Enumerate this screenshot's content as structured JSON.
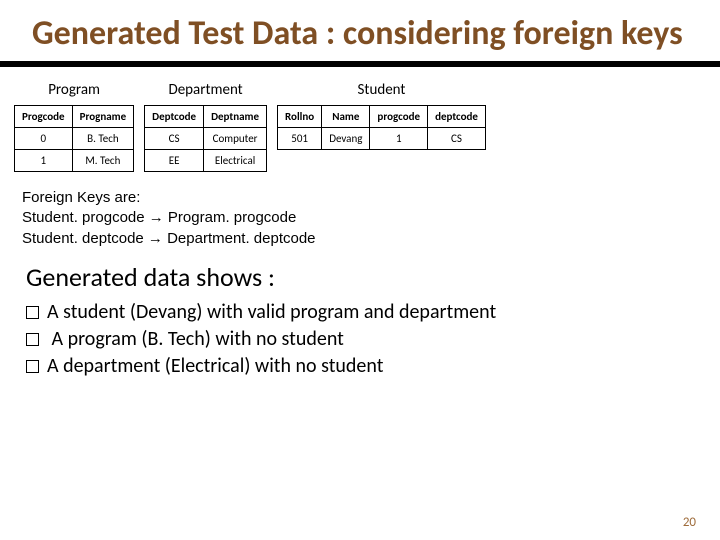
{
  "title": "Generated Test Data : considering foreign keys",
  "tables": {
    "program": {
      "caption": "Program",
      "headers": [
        "Progcode",
        "Progname"
      ],
      "rows": [
        [
          "0",
          "B. Tech"
        ],
        [
          "1",
          "M. Tech"
        ]
      ]
    },
    "department": {
      "caption": "Department",
      "headers": [
        "Deptcode",
        "Deptname"
      ],
      "rows": [
        [
          "CS",
          "Computer"
        ],
        [
          "EE",
          "Electrical"
        ]
      ]
    },
    "student": {
      "caption": "Student",
      "headers": [
        "Rollno",
        "Name",
        "progcode",
        "deptcode"
      ],
      "rows": [
        [
          "501",
          "Devang",
          "1",
          "CS"
        ]
      ]
    }
  },
  "fk": {
    "heading": "Foreign Keys are:",
    "line1": "Student. progcode → Program. progcode",
    "line2": "Student. deptcode → Department. deptcode"
  },
  "subhead": "Generated data shows :",
  "bullets": {
    "b1": "A student (Devang) with valid program and department",
    "b2": " A program (B. Tech) with no student",
    "b3": "A department (Electrical) with no student"
  },
  "pagenum": "20"
}
